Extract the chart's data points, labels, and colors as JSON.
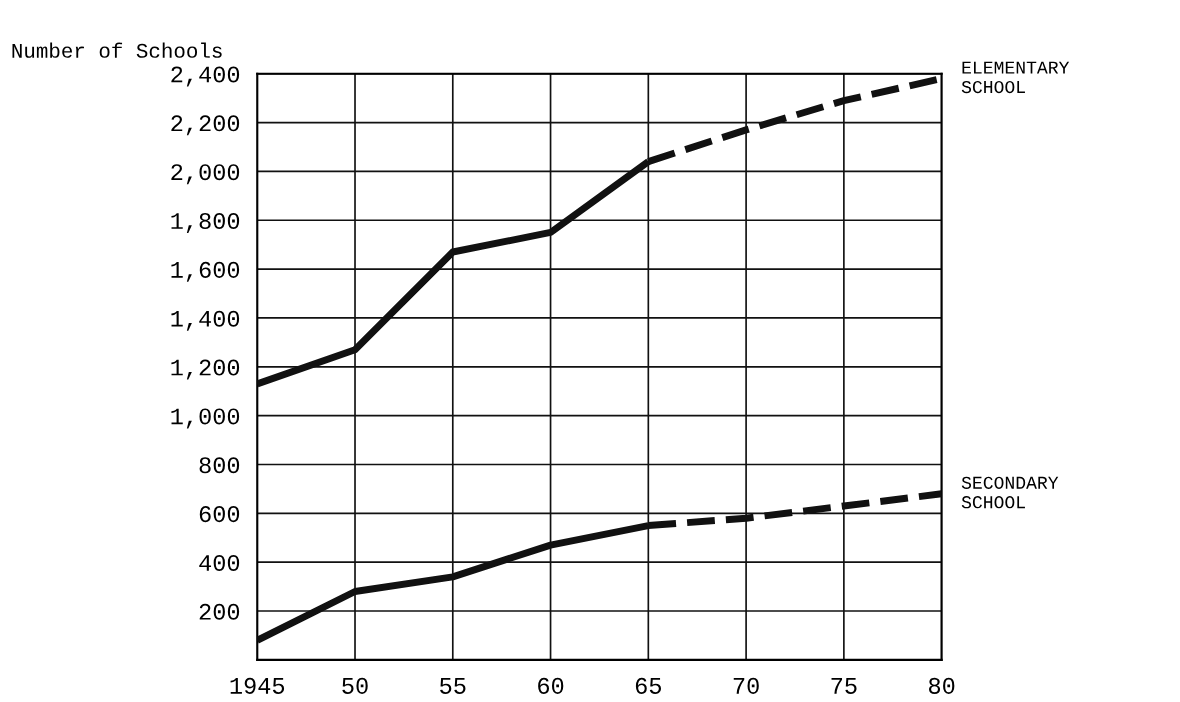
{
  "chart_data": {
    "type": "line",
    "ylabel": "Number of Schools",
    "xlim": [
      1945,
      1980
    ],
    "ylim": [
      0,
      2400
    ],
    "xticks": [
      {
        "value": 1945,
        "label": "1945"
      },
      {
        "value": 1950,
        "label": "50"
      },
      {
        "value": 1955,
        "label": "55"
      },
      {
        "value": 1960,
        "label": "60"
      },
      {
        "value": 1965,
        "label": "65"
      },
      {
        "value": 1970,
        "label": "70"
      },
      {
        "value": 1975,
        "label": "75"
      },
      {
        "value": 1980,
        "label": "80"
      }
    ],
    "yticks": [
      {
        "value": 200,
        "label": "200"
      },
      {
        "value": 400,
        "label": "400"
      },
      {
        "value": 600,
        "label": "600"
      },
      {
        "value": 800,
        "label": "800"
      },
      {
        "value": 1000,
        "label": "1,000"
      },
      {
        "value": 1200,
        "label": "1,200"
      },
      {
        "value": 1400,
        "label": "1,400"
      },
      {
        "value": 1600,
        "label": "1,600"
      },
      {
        "value": 1800,
        "label": "1,800"
      },
      {
        "value": 2000,
        "label": "2,000"
      },
      {
        "value": 2200,
        "label": "2,200"
      },
      {
        "value": 2400,
        "label": "2,400"
      }
    ],
    "grid": true,
    "marker": "none",
    "series": [
      {
        "color": "#111111",
        "line_style": "solid",
        "x": [
          1945,
          1950,
          1955,
          1960,
          1965
        ],
        "values": [
          1130,
          1270,
          1670,
          1750,
          2040
        ]
      },
      {
        "name": "ELEMENTARY\nSCHOOL",
        "color": "#111111",
        "line_style": "dashed",
        "x": [
          1965,
          1970,
          1975,
          1980
        ],
        "values": [
          2040,
          2170,
          2290,
          2380
        ]
      },
      {
        "color": "#111111",
        "line_style": "solid",
        "x": [
          1945,
          1950,
          1955,
          1960,
          1965
        ],
        "values": [
          80,
          280,
          340,
          470,
          550
        ]
      },
      {
        "name": "SECONDARY\nSCHOOL",
        "color": "#111111",
        "line_style": "dashed",
        "x": [
          1965,
          1970,
          1975,
          1980
        ],
        "values": [
          550,
          580,
          630,
          680
        ]
      }
    ]
  }
}
